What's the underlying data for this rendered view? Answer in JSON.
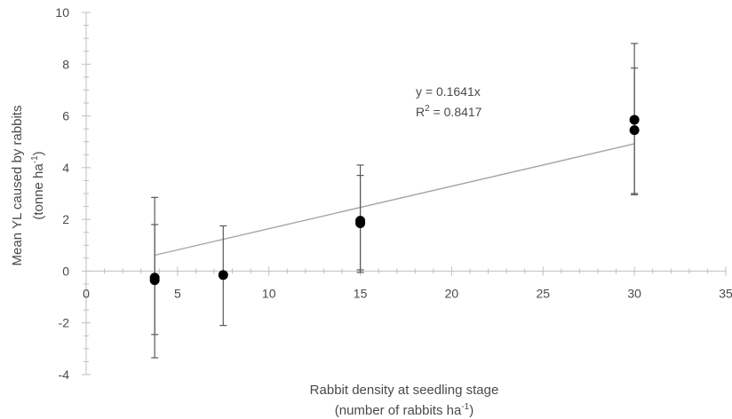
{
  "chart_data": {
    "type": "scatter",
    "title": "",
    "xlabel_line1": "Rabbit density at seedling stage",
    "xlabel_line2_pre": "(number of rabbits ha",
    "xlabel_line2_sup": "-1",
    "xlabel_line2_post": ")",
    "ylabel_line1": "Mean YL caused by rabbits",
    "ylabel_line2_pre": "(tonne ha",
    "ylabel_line2_sup": "-1",
    "ylabel_line2_post": ")",
    "xlim": [
      0,
      35
    ],
    "ylim": [
      -4,
      10
    ],
    "x_ticks": [
      0,
      5,
      10,
      15,
      20,
      25,
      30,
      35
    ],
    "y_ticks": [
      -4,
      -2,
      0,
      2,
      4,
      6,
      8,
      10
    ],
    "x_minor_step": 1,
    "y_minor_step": 0.5,
    "grid": false,
    "points": [
      {
        "x": 3.75,
        "y": -0.25,
        "err_low": -3.35,
        "err_high": 2.85
      },
      {
        "x": 3.75,
        "y": -0.35,
        "err_low": -2.45,
        "err_high": 1.8
      },
      {
        "x": 7.5,
        "y": -0.15,
        "err_low": -2.1,
        "err_high": 1.75
      },
      {
        "x": 15,
        "y": 1.95,
        "err_low": 0.05,
        "err_high": 4.1
      },
      {
        "x": 15,
        "y": 1.85,
        "err_low": -0.05,
        "err_high": 3.7
      },
      {
        "x": 30,
        "y": 5.85,
        "err_low": 3.0,
        "err_high": 8.8
      },
      {
        "x": 30,
        "y": 5.45,
        "err_low": 2.95,
        "err_high": 7.85
      }
    ],
    "trendline": {
      "slope": 0.1641,
      "x_start": 3.75,
      "x_end": 30
    },
    "equation_line1": "y = 0.1641x",
    "equation_line2_pre": "R",
    "equation_line2_sup": "2",
    "equation_line2_post": " = 0.8417",
    "marker_color": "#000000",
    "errorbar_color": "#595959",
    "trendline_color": "#a6a6a6",
    "axis_color": "#bfbfbf"
  }
}
